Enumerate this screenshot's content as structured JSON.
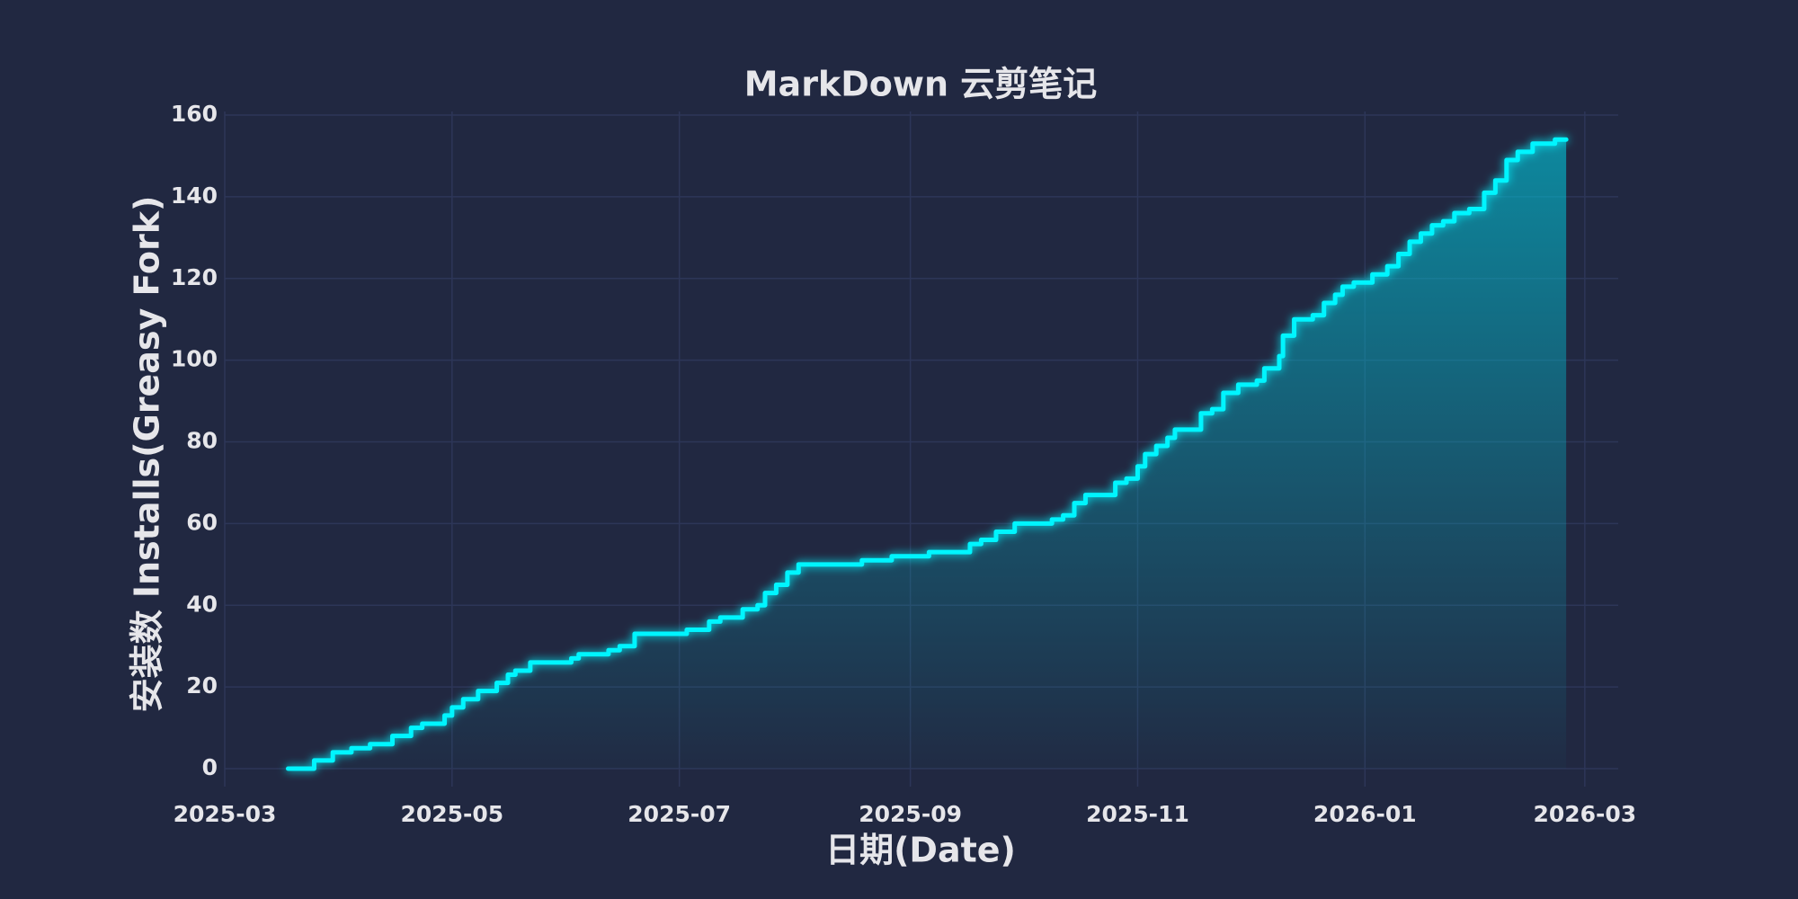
{
  "chart_data": {
    "type": "line",
    "title": "MarkDown 云剪笔记",
    "x_label": "日期(Date)",
    "y_label": "安装数 Installs(Greasy Fork)",
    "x": [
      "2025-03-18",
      "2025-03-25",
      "2025-03-30",
      "2025-04-04",
      "2025-04-09",
      "2025-04-15",
      "2025-04-20",
      "2025-04-23",
      "2025-04-29",
      "2025-05-01",
      "2025-05-04",
      "2025-05-08",
      "2025-05-13",
      "2025-05-16",
      "2025-05-18",
      "2025-05-22",
      "2025-06-02",
      "2025-06-04",
      "2025-06-12",
      "2025-06-15",
      "2025-06-19",
      "2025-07-03",
      "2025-07-09",
      "2025-07-12",
      "2025-07-18",
      "2025-07-22",
      "2025-07-24",
      "2025-07-27",
      "2025-07-30",
      "2025-08-02",
      "2025-08-19",
      "2025-08-27",
      "2025-09-06",
      "2025-09-17",
      "2025-09-20",
      "2025-09-24",
      "2025-09-29",
      "2025-10-09",
      "2025-10-12",
      "2025-10-15",
      "2025-10-18",
      "2025-10-26",
      "2025-10-29",
      "2025-11-01",
      "2025-11-03",
      "2025-11-06",
      "2025-11-09",
      "2025-11-11",
      "2025-11-18",
      "2025-11-21",
      "2025-11-24",
      "2025-11-28",
      "2025-12-03",
      "2025-12-05",
      "2025-12-09",
      "2025-12-10",
      "2025-12-13",
      "2025-12-18",
      "2025-12-21",
      "2025-12-24",
      "2025-12-26",
      "2025-12-29",
      "2026-01-03",
      "2026-01-07",
      "2026-01-10",
      "2026-01-13",
      "2026-01-16",
      "2026-01-19",
      "2026-01-22",
      "2026-01-25",
      "2026-01-29",
      "2026-02-02",
      "2026-02-05",
      "2026-02-08",
      "2026-02-11",
      "2026-02-15",
      "2026-02-21",
      "2026-02-24"
    ],
    "values": [
      0,
      2,
      4,
      5,
      6,
      8,
      10,
      11,
      13,
      15,
      17,
      19,
      21,
      23,
      24,
      26,
      27,
      28,
      29,
      30,
      33,
      34,
      36,
      37,
      39,
      40,
      43,
      45,
      48,
      50,
      51,
      52,
      53,
      55,
      56,
      58,
      60,
      61,
      62,
      65,
      67,
      70,
      71,
      74,
      77,
      79,
      81,
      83,
      87,
      88,
      92,
      94,
      95,
      98,
      101,
      106,
      110,
      111,
      114,
      116,
      118,
      119,
      121,
      123,
      126,
      129,
      131,
      133,
      134,
      136,
      137,
      141,
      144,
      149,
      151,
      153,
      154,
      154
    ],
    "color": "#00f5ff",
    "step": true,
    "fill": true,
    "grid": true,
    "xlim": [
      "2025-03-01",
      "2026-03-09"
    ],
    "xticks": [
      "2025-03",
      "2025-05",
      "2025-07",
      "2025-09",
      "2025-11",
      "2026-01",
      "2026-03"
    ],
    "ylim": [
      0,
      160
    ],
    "yticks": [
      0,
      20,
      40,
      60,
      80,
      100,
      120,
      140,
      160
    ]
  }
}
